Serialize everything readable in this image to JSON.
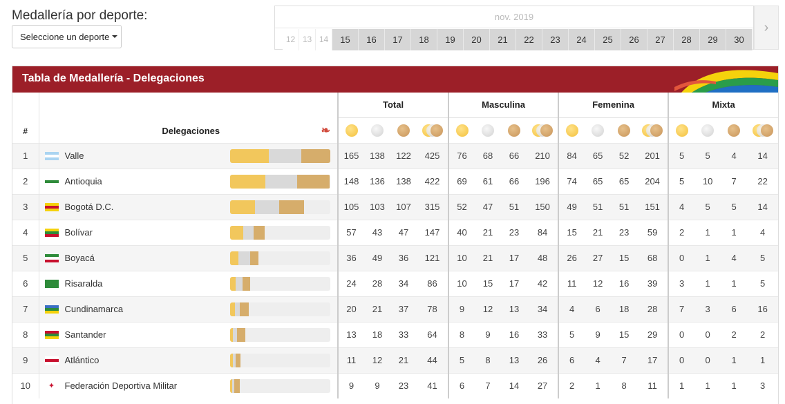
{
  "filter": {
    "title": "Medallería por deporte:",
    "dropdown_label": "Seleccione un deporte"
  },
  "calendar": {
    "month": "nov. 2019",
    "past_days": [
      "12",
      "13",
      "14"
    ],
    "active_days": [
      "15",
      "16",
      "17",
      "18",
      "19",
      "20",
      "21",
      "22",
      "23",
      "24",
      "25",
      "26",
      "27",
      "28",
      "29",
      "30"
    ],
    "next_icon": "chevron-right-icon"
  },
  "panel": {
    "title": "Tabla de Medallería - Delegaciones"
  },
  "table": {
    "rank_header": "#",
    "delegations_header": "Delegaciones",
    "groups": [
      "Total",
      "Masculina",
      "Femenina",
      "Mixta"
    ],
    "rows": [
      {
        "rank": "1",
        "name": "Valle",
        "flag": [
          "#aad4f1",
          "#ffffff",
          "#aad4f1"
        ],
        "total": [
          "165",
          "138",
          "122",
          "425"
        ],
        "masc": [
          "76",
          "68",
          "66",
          "210"
        ],
        "fem": [
          "84",
          "65",
          "52",
          "201"
        ],
        "mixta": [
          "5",
          "5",
          "4",
          "14"
        ]
      },
      {
        "rank": "2",
        "name": "Antioquia",
        "flag": [
          "#ffffff",
          "#2e8b3a",
          "#ffffff"
        ],
        "total": [
          "148",
          "136",
          "138",
          "422"
        ],
        "masc": [
          "69",
          "61",
          "66",
          "196"
        ],
        "fem": [
          "74",
          "65",
          "65",
          "204"
        ],
        "mixta": [
          "5",
          "10",
          "7",
          "22"
        ]
      },
      {
        "rank": "3",
        "name": "Bogotá D.C.",
        "flag": [
          "#f5d20c",
          "#c8102e",
          "#f5d20c"
        ],
        "total": [
          "105",
          "103",
          "107",
          "315"
        ],
        "masc": [
          "52",
          "47",
          "51",
          "150"
        ],
        "fem": [
          "49",
          "51",
          "51",
          "151"
        ],
        "mixta": [
          "4",
          "5",
          "5",
          "14"
        ]
      },
      {
        "rank": "4",
        "name": "Bolívar",
        "flag": [
          "#f5d20c",
          "#2e8b3a",
          "#c8102e"
        ],
        "total": [
          "57",
          "43",
          "47",
          "147"
        ],
        "masc": [
          "40",
          "21",
          "23",
          "84"
        ],
        "fem": [
          "15",
          "21",
          "23",
          "59"
        ],
        "mixta": [
          "2",
          "1",
          "1",
          "4"
        ]
      },
      {
        "rank": "5",
        "name": "Boyacá",
        "flag": [
          "#2e8b3a",
          "#ffffff",
          "#c8102e"
        ],
        "total": [
          "36",
          "49",
          "36",
          "121"
        ],
        "masc": [
          "10",
          "21",
          "17",
          "48"
        ],
        "fem": [
          "26",
          "27",
          "15",
          "68"
        ],
        "mixta": [
          "0",
          "1",
          "4",
          "5"
        ]
      },
      {
        "rank": "6",
        "name": "Risaralda",
        "flag": [
          "#2e8b3a",
          "#2e8b3a",
          "#2e8b3a"
        ],
        "total": [
          "24",
          "28",
          "34",
          "86"
        ],
        "masc": [
          "10",
          "15",
          "17",
          "42"
        ],
        "fem": [
          "11",
          "12",
          "16",
          "39"
        ],
        "mixta": [
          "3",
          "1",
          "1",
          "5"
        ]
      },
      {
        "rank": "7",
        "name": "Cundinamarca",
        "flag": [
          "#3a6fc4",
          "#2e8b3a",
          "#f5d20c"
        ],
        "total": [
          "20",
          "21",
          "37",
          "78"
        ],
        "masc": [
          "9",
          "12",
          "13",
          "34"
        ],
        "fem": [
          "4",
          "6",
          "18",
          "28"
        ],
        "mixta": [
          "7",
          "3",
          "6",
          "16"
        ]
      },
      {
        "rank": "8",
        "name": "Santander",
        "flag": [
          "#c8102e",
          "#2e8b3a",
          "#f5d20c"
        ],
        "total": [
          "13",
          "18",
          "33",
          "64"
        ],
        "masc": [
          "8",
          "9",
          "16",
          "33"
        ],
        "fem": [
          "5",
          "9",
          "15",
          "29"
        ],
        "mixta": [
          "0",
          "0",
          "2",
          "2"
        ]
      },
      {
        "rank": "9",
        "name": "Atlántico",
        "flag": [
          "#ffffff",
          "#c8102e",
          "#ffffff"
        ],
        "total": [
          "11",
          "12",
          "21",
          "44"
        ],
        "masc": [
          "5",
          "8",
          "13",
          "26"
        ],
        "fem": [
          "6",
          "4",
          "7",
          "17"
        ],
        "mixta": [
          "0",
          "0",
          "1",
          "1"
        ]
      },
      {
        "rank": "10",
        "name": "Federación Deportiva Militar",
        "flag": [
          "#ffffff",
          "#ffffff",
          "#ffffff"
        ],
        "total": [
          "9",
          "9",
          "23",
          "41"
        ],
        "masc": [
          "6",
          "7",
          "14",
          "27"
        ],
        "fem": [
          "2",
          "1",
          "8",
          "11"
        ],
        "mixta": [
          "1",
          "1",
          "1",
          "3"
        ]
      }
    ]
  }
}
